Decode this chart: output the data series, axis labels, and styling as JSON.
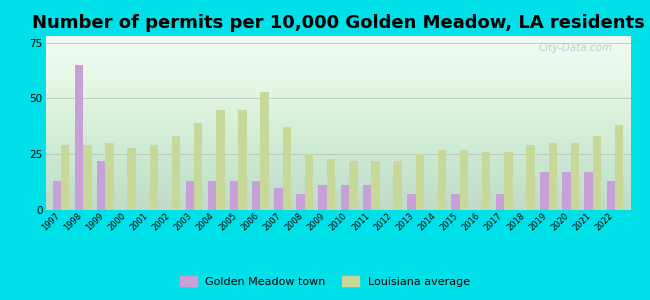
{
  "title": "Number of permits per 10,000 Golden Meadow, LA residents",
  "years": [
    1997,
    1998,
    1999,
    2000,
    2001,
    2002,
    2003,
    2004,
    2005,
    2006,
    2007,
    2008,
    2009,
    2010,
    2011,
    2012,
    2013,
    2014,
    2015,
    2016,
    2017,
    2018,
    2019,
    2020,
    2021,
    2022
  ],
  "golden_meadow": [
    13,
    65,
    22,
    0,
    0,
    0,
    13,
    13,
    13,
    13,
    10,
    7,
    11,
    11,
    11,
    0,
    7,
    0,
    7,
    0,
    7,
    0,
    17,
    17,
    17,
    13
  ],
  "louisiana_avg": [
    29,
    29,
    30,
    28,
    29,
    33,
    39,
    45,
    45,
    53,
    37,
    25,
    23,
    22,
    22,
    22,
    25,
    27,
    27,
    26,
    26,
    29,
    30,
    30,
    33,
    38
  ],
  "golden_meadow_color": "#c8a0d8",
  "louisiana_avg_color": "#c8d898",
  "plot_bg_top": "#f0fff0",
  "plot_bg_bottom": "#d0f0e0",
  "outer_background": "#00e0e8",
  "ylim": [
    0,
    78
  ],
  "yticks": [
    0,
    25,
    50,
    75
  ],
  "title_fontsize": 13,
  "bar_width": 0.38,
  "legend_labels": [
    "Golden Meadow town",
    "Louisiana average"
  ],
  "watermark": "City-Data.com"
}
